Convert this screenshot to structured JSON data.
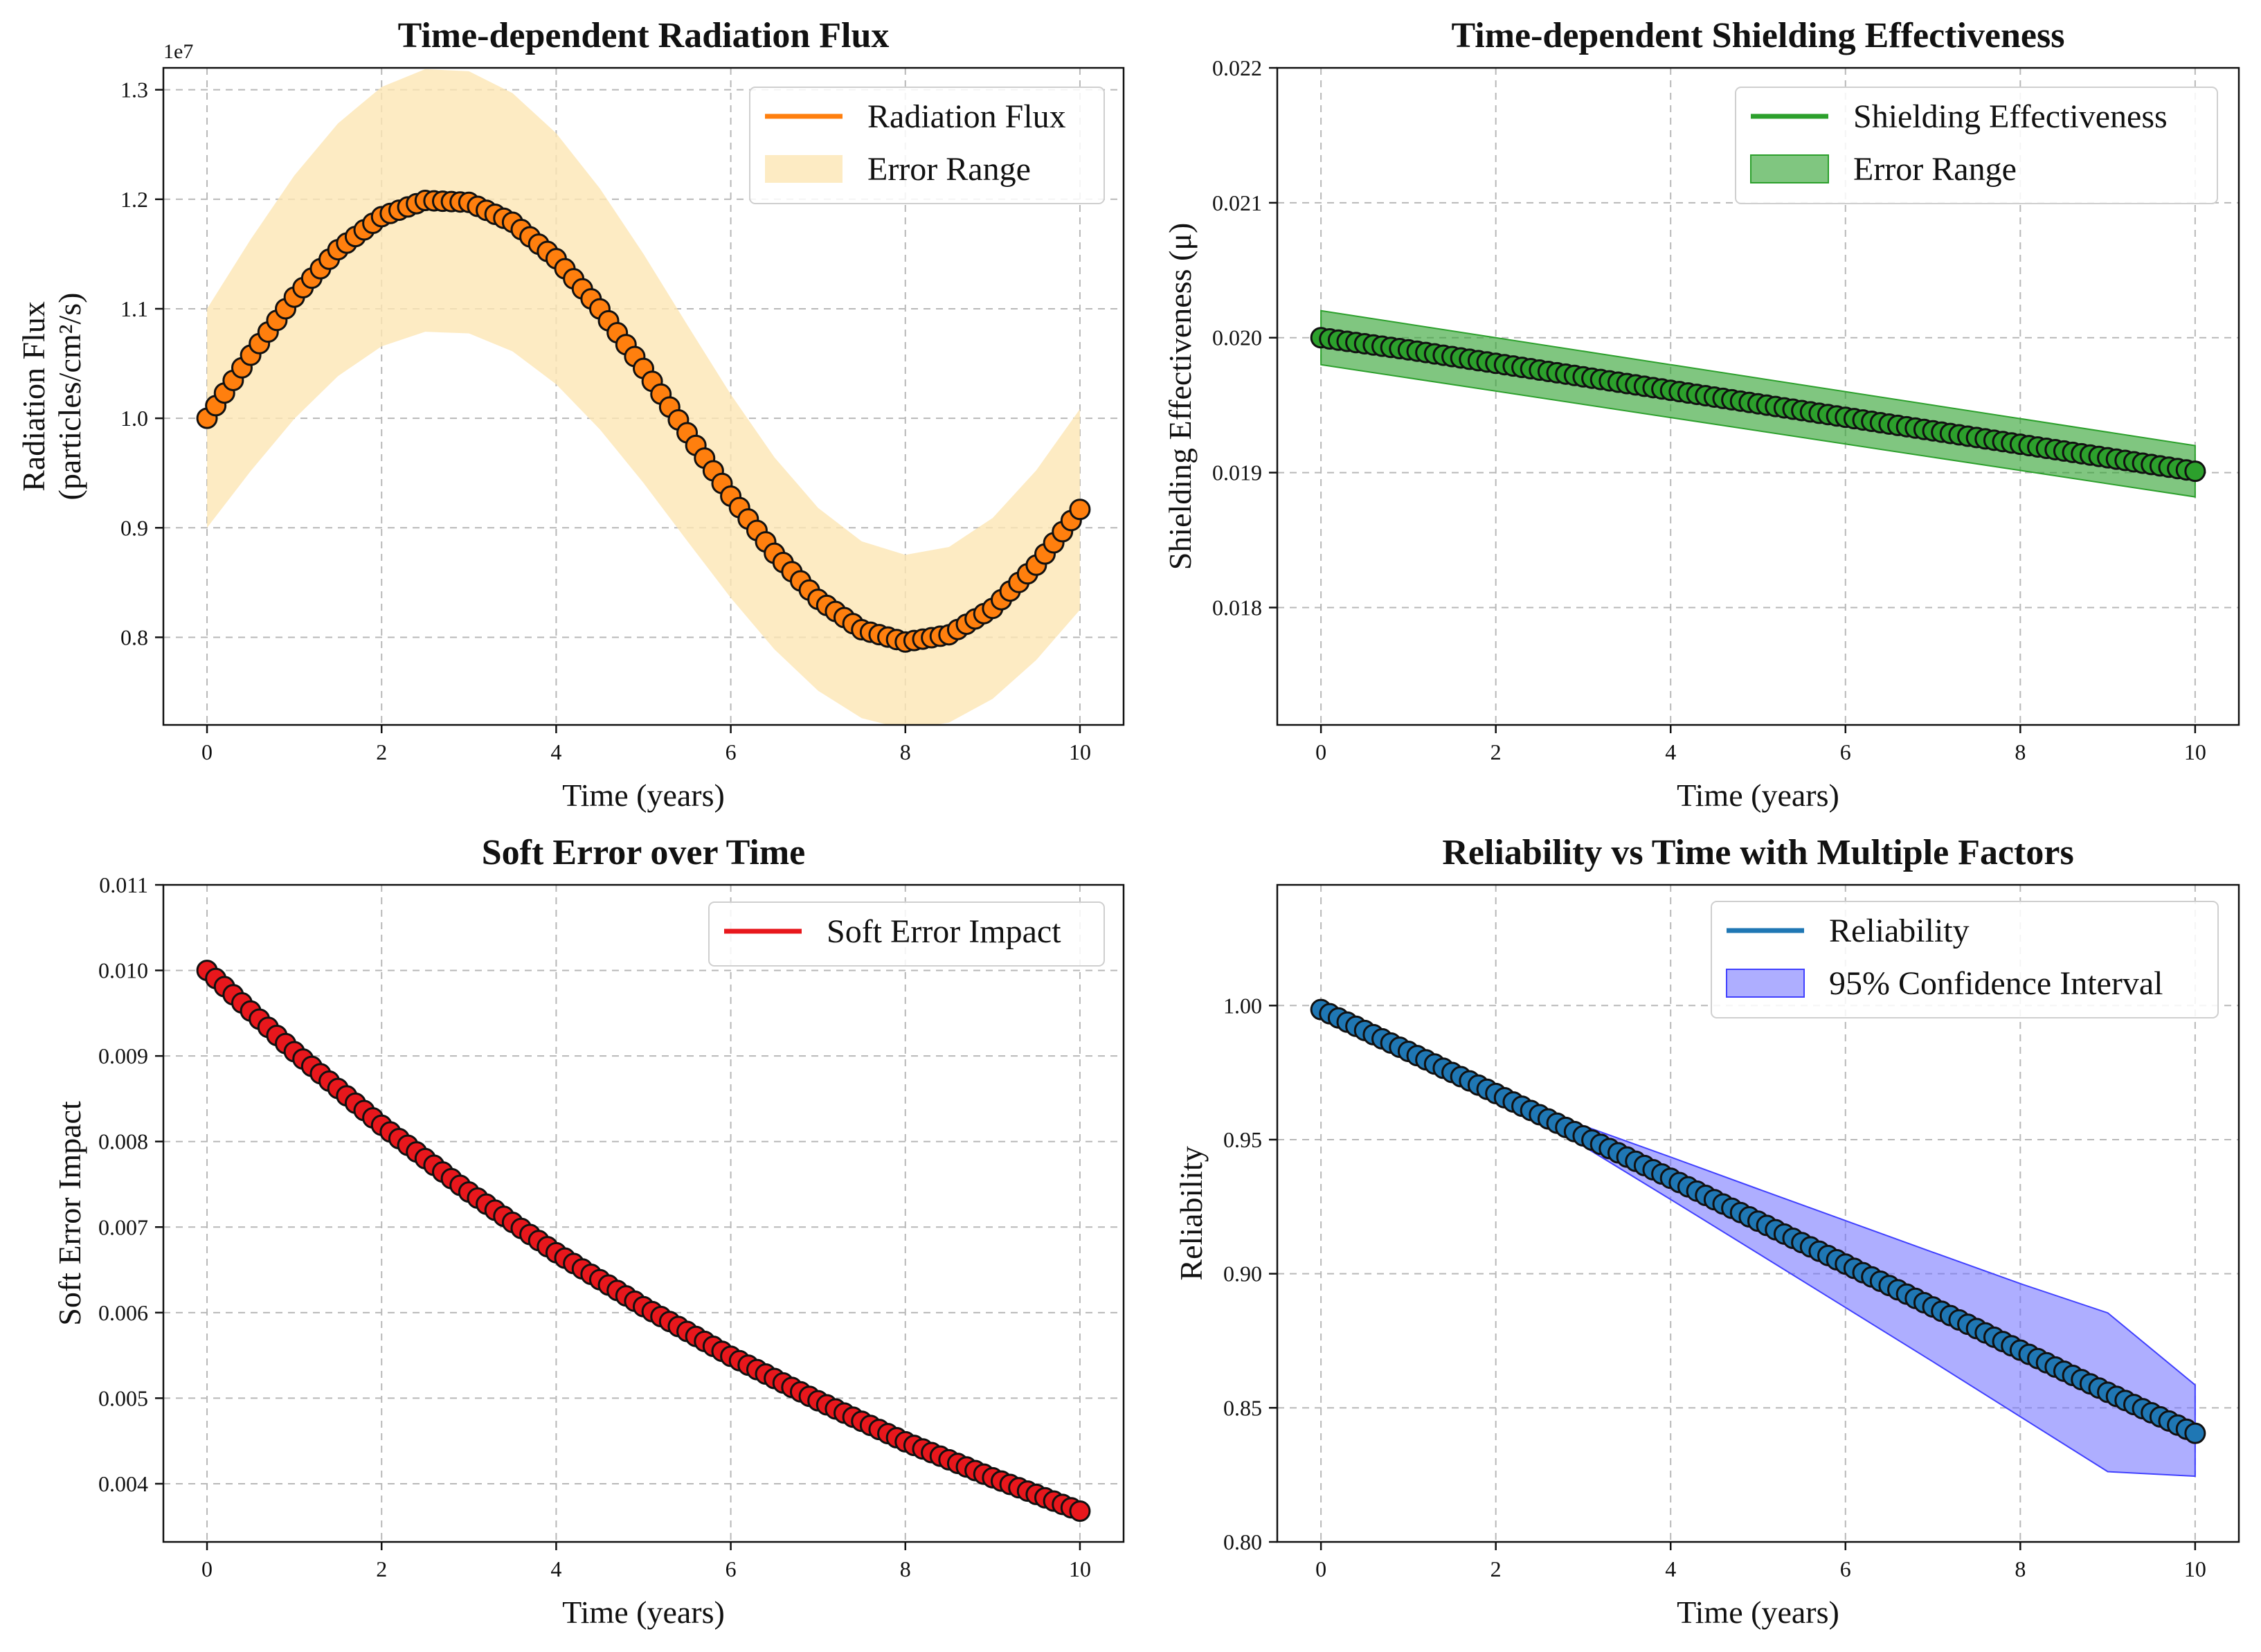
{
  "chart_data": [
    {
      "type": "line",
      "title": "Time-dependent Radiation Flux",
      "xlabel": "Time (years)",
      "ylabel": [
        "Radiation Flux",
        "(particles/cm²/s)"
      ],
      "offset_text": "1e7",
      "xlim": [
        -0.5,
        10.5
      ],
      "ylim": [
        0.72,
        1.32
      ],
      "xticks": [
        0,
        2,
        4,
        6,
        8,
        10
      ],
      "yticks": [
        0.8,
        0.9,
        1.0,
        1.1,
        1.2,
        1.3
      ],
      "ytick_labels": [
        "0.8",
        "0.9",
        "1.0",
        "1.1",
        "1.2",
        "1.3"
      ],
      "grid": true,
      "legend_position": "upper right",
      "series": [
        {
          "name": "Radiation Flux",
          "color": "#ff7f0e",
          "marker": "circle",
          "x": [
            0,
            0.5,
            1,
            1.5,
            2,
            2.5,
            3,
            3.5,
            4,
            4.5,
            5,
            5.5,
            6,
            6.5,
            7,
            7.5,
            8,
            8.5,
            9,
            9.5,
            10
          ],
          "y": [
            1.0,
            1.0576,
            1.1106,
            1.1539,
            1.1841,
            1.1989,
            1.1972,
            1.179,
            1.1457,
            1.0999,
            1.0455,
            0.9868,
            0.9289,
            0.8767,
            0.8347,
            0.8069,
            0.7957,
            0.8023,
            0.8264,
            0.8659,
            0.9168
          ]
        },
        {
          "name": "Error Range",
          "type": "band",
          "color": "#fde6b4",
          "x": [
            0,
            0.5,
            1,
            1.5,
            2,
            2.5,
            3,
            3.5,
            4,
            4.5,
            5,
            5.5,
            6,
            6.5,
            7,
            7.5,
            8,
            8.5,
            9,
            9.5,
            10
          ],
          "lower": [
            0.9,
            0.9518,
            0.9995,
            1.0385,
            1.0657,
            1.079,
            1.0775,
            1.0611,
            1.0311,
            0.9899,
            0.941,
            0.8881,
            0.836,
            0.789,
            0.7512,
            0.7262,
            0.7161,
            0.7221,
            0.7438,
            0.7793,
            0.8251
          ],
          "upper": [
            1.1,
            1.1634,
            1.2217,
            1.2693,
            1.3025,
            1.3188,
            1.3169,
            1.2969,
            1.2603,
            1.2099,
            1.1501,
            1.0855,
            1.0218,
            0.9644,
            0.9182,
            0.8876,
            0.8753,
            0.8825,
            0.909,
            0.9525,
            1.0085
          ]
        }
      ]
    },
    {
      "type": "line",
      "title": "Time-dependent Shielding Effectiveness",
      "xlabel": "Time (years)",
      "ylabel": [
        "Shielding Effectiveness (μ)"
      ],
      "offset_text": "",
      "xlim": [
        -0.5,
        10.5
      ],
      "ylim": [
        0.01713,
        0.022
      ],
      "xticks": [
        0,
        2,
        4,
        6,
        8,
        10
      ],
      "yticks": [
        0.018,
        0.019,
        0.02,
        0.021,
        0.022
      ],
      "ytick_labels": [
        "0.018",
        "0.019",
        "0.020",
        "0.021",
        "0.022"
      ],
      "grid": true,
      "legend_position": "upper right",
      "series": [
        {
          "name": "Shielding Effectiveness",
          "color": "#2ca02c",
          "marker": "circle",
          "x": [
            0,
            1,
            2,
            3,
            4,
            5,
            6,
            7,
            8,
            9,
            10
          ],
          "y": [
            0.02,
            0.01991,
            0.01981,
            0.01971,
            0.01961,
            0.01951,
            0.01941,
            0.01931,
            0.01921,
            0.01911,
            0.01901
          ]
        },
        {
          "name": "Error Range",
          "type": "band",
          "color": "#2ca02c",
          "x": [
            0,
            10
          ],
          "lower": [
            0.0198,
            0.01882
          ],
          "upper": [
            0.0202,
            0.0192
          ]
        }
      ]
    },
    {
      "type": "line",
      "title": "Soft Error over Time",
      "xlabel": "Time (years)",
      "ylabel": [
        "Soft Error Impact"
      ],
      "offset_text": "",
      "xlim": [
        -0.5,
        10.5
      ],
      "ylim": [
        0.00332,
        0.011
      ],
      "xticks": [
        0,
        2,
        4,
        6,
        8,
        10
      ],
      "yticks": [
        0.004,
        0.005,
        0.006,
        0.007,
        0.008,
        0.009,
        0.01,
        0.011
      ],
      "ytick_labels": [
        "0.004",
        "0.005",
        "0.006",
        "0.007",
        "0.008",
        "0.009",
        "0.010",
        "0.011"
      ],
      "grid": true,
      "legend_position": "upper right",
      "series": [
        {
          "name": "Soft Error Impact",
          "color": "#e8171c",
          "marker": "circle",
          "x": [
            0,
            1,
            2,
            3,
            4,
            5,
            6,
            7,
            8,
            9,
            10
          ],
          "y": [
            0.01,
            0.00905,
            0.00819,
            0.00741,
            0.0067,
            0.00607,
            0.00549,
            0.00497,
            0.00449,
            0.00407,
            0.00368
          ]
        }
      ]
    },
    {
      "type": "line",
      "title": "Reliability vs Time with Multiple Factors",
      "xlabel": "Time (years)",
      "ylabel": [
        "Reliability"
      ],
      "offset_text": "",
      "xlim": [
        -0.5,
        10.5
      ],
      "ylim": [
        0.8,
        1.045
      ],
      "xticks": [
        0,
        2,
        4,
        6,
        8,
        10
      ],
      "yticks": [
        0.8,
        0.85,
        0.9,
        0.95,
        1.0
      ],
      "ytick_labels": [
        "0.80",
        "0.85",
        "0.90",
        "0.95",
        "1.00"
      ],
      "grid": true,
      "legend_position": "upper right",
      "series": [
        {
          "name": "Reliability",
          "color": "#1f77b4",
          "marker": "circle",
          "x": [
            0,
            1,
            2,
            3,
            4,
            5,
            6,
            7,
            8,
            9,
            10
          ],
          "y": [
            0.9985,
            0.9829,
            0.9672,
            0.9514,
            0.9356,
            0.9196,
            0.9036,
            0.8876,
            0.8715,
            0.8558,
            0.8405
          ]
        },
        {
          "name": "95% Confidence Interval",
          "type": "band",
          "color": "#6b6bff",
          "x": [
            0,
            1,
            2,
            3,
            4,
            5,
            6,
            7,
            8,
            9,
            10
          ],
          "lower": [
            0.9985,
            0.9829,
            0.9672,
            0.9476,
            0.9277,
            0.9076,
            0.8874,
            0.8672,
            0.8467,
            0.8262,
            0.8245
          ],
          "upper": [
            0.9985,
            0.9829,
            0.9672,
            0.9552,
            0.9435,
            0.9316,
            0.9198,
            0.908,
            0.8963,
            0.8854,
            0.8585
          ]
        }
      ]
    }
  ]
}
